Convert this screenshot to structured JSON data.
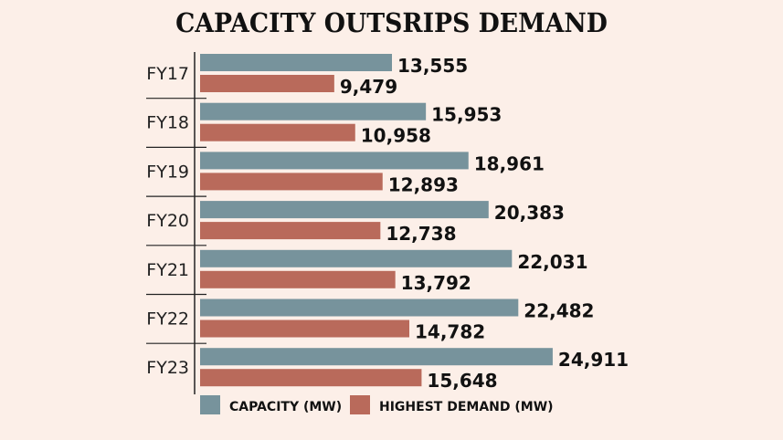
{
  "chart_data": {
    "type": "bar",
    "orientation": "horizontal",
    "title": "CAPACITY OUTSRIPS DEMAND",
    "categories": [
      "FY17",
      "FY18",
      "FY19",
      "FY20",
      "FY21",
      "FY22",
      "FY23"
    ],
    "series": [
      {
        "name": "CAPACITY (MW)",
        "color": "#77939c",
        "values": [
          13555,
          15953,
          18961,
          20383,
          22031,
          22482,
          24911
        ],
        "labels": [
          "13,555",
          "15,953",
          "18,961",
          "20,383",
          "22,031",
          "22,482",
          "24,911"
        ]
      },
      {
        "name": "HIGHEST DEMAND (MW)",
        "color": "#b96a5b",
        "values": [
          9479,
          10958,
          12893,
          12738,
          13792,
          14782,
          15648
        ],
        "labels": [
          "9,479",
          "10,958",
          "12,893",
          "12,738",
          "13,792",
          "14,782",
          "15,648"
        ]
      }
    ],
    "legend": "bottom",
    "grid": false,
    "background": "#fcefe8"
  }
}
